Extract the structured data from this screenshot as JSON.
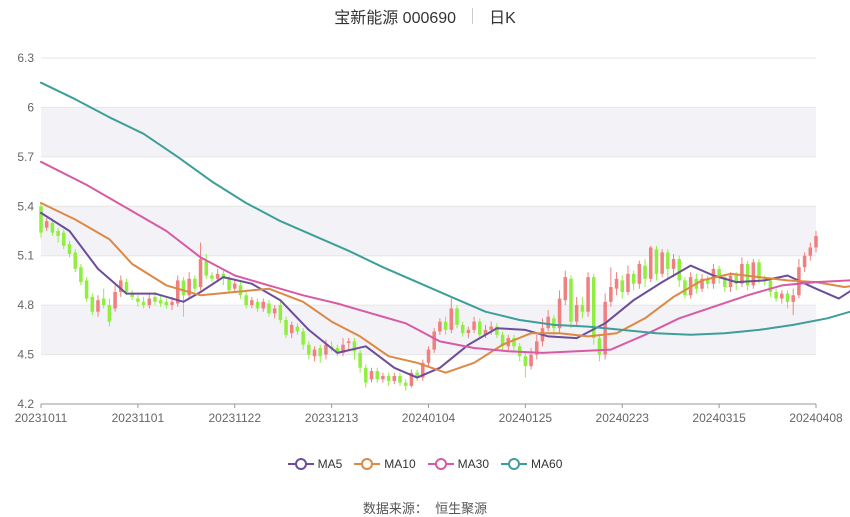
{
  "header": {
    "title": "宝新能源 000690",
    "period": "日K"
  },
  "source": {
    "label": "数据来源：",
    "name": "恒生聚源"
  },
  "chart_data": {
    "type": "candlestick",
    "title": "宝新能源 000690",
    "period": "日K",
    "xlabel": "",
    "ylabel": "",
    "ylim": [
      4.2,
      6.3
    ],
    "yticks": [
      4.2,
      4.5,
      4.8,
      5.1,
      5.4,
      5.7,
      6,
      6.3
    ],
    "xticks": [
      "20231011",
      "20231101",
      "20231122",
      "20231213",
      "20240104",
      "20240125",
      "20240223",
      "20240315",
      "20240408"
    ],
    "grid": true,
    "legend": "bottom",
    "colors": {
      "up": "#f08080",
      "down": "#90ee40",
      "band": "#f3f3f7",
      "grid": "#e6e6e6"
    },
    "candles": [
      [
        5.4,
        5.24,
        5.42,
        5.21
      ],
      [
        5.27,
        5.31,
        5.33,
        5.25
      ],
      [
        5.3,
        5.24,
        5.32,
        5.22
      ],
      [
        5.25,
        5.22,
        5.27,
        5.18
      ],
      [
        5.24,
        5.16,
        5.26,
        5.14
      ],
      [
        5.17,
        5.11,
        5.19,
        5.09
      ],
      [
        5.12,
        5.02,
        5.14,
        5.0
      ],
      [
        5.03,
        4.94,
        5.05,
        4.92
      ],
      [
        4.95,
        4.84,
        4.97,
        4.82
      ],
      [
        4.85,
        4.76,
        4.87,
        4.74
      ],
      [
        4.76,
        4.83,
        4.86,
        4.73
      ],
      [
        4.84,
        4.8,
        4.9,
        4.78
      ],
      [
        4.8,
        4.7,
        4.84,
        4.67
      ],
      [
        4.78,
        4.88,
        4.92,
        4.76
      ],
      [
        4.88,
        4.95,
        4.98,
        4.85
      ],
      [
        4.94,
        4.88,
        4.96,
        4.86
      ],
      [
        4.87,
        4.85,
        4.89,
        4.83
      ],
      [
        4.84,
        4.82,
        4.86,
        4.79
      ],
      [
        4.82,
        4.8,
        4.85,
        4.78
      ],
      [
        4.8,
        4.84,
        4.87,
        4.78
      ],
      [
        4.85,
        4.82,
        4.88,
        4.8
      ],
      [
        4.83,
        4.81,
        4.86,
        4.79
      ],
      [
        4.82,
        4.8,
        4.84,
        4.78
      ],
      [
        4.8,
        4.82,
        4.85,
        4.77
      ],
      [
        4.81,
        4.95,
        4.98,
        4.79
      ],
      [
        4.95,
        4.86,
        4.97,
        4.73
      ],
      [
        4.86,
        4.96,
        5.0,
        4.84
      ],
      [
        4.96,
        4.9,
        4.98,
        4.88
      ],
      [
        4.91,
        5.08,
        5.18,
        4.89
      ],
      [
        5.07,
        4.98,
        5.11,
        4.96
      ],
      [
        4.98,
        4.96,
        5.0,
        4.94
      ],
      [
        4.96,
        4.99,
        5.02,
        4.94
      ],
      [
        4.99,
        4.96,
        5.01,
        4.92
      ],
      [
        4.96,
        4.89,
        4.98,
        4.87
      ],
      [
        4.9,
        4.93,
        4.95,
        4.88
      ],
      [
        4.92,
        4.86,
        4.94,
        4.84
      ],
      [
        4.86,
        4.8,
        4.88,
        4.78
      ],
      [
        4.8,
        4.83,
        4.85,
        4.78
      ],
      [
        4.82,
        4.78,
        4.84,
        4.76
      ],
      [
        4.78,
        4.82,
        4.84,
        4.76
      ],
      [
        4.81,
        4.75,
        4.83,
        4.73
      ],
      [
        4.75,
        4.78,
        4.8,
        4.72
      ],
      [
        4.8,
        4.71,
        4.82,
        4.69
      ],
      [
        4.71,
        4.62,
        4.73,
        4.6
      ],
      [
        4.63,
        4.68,
        4.7,
        4.6
      ],
      [
        4.67,
        4.64,
        4.69,
        4.62
      ],
      [
        4.64,
        4.56,
        4.66,
        4.53
      ],
      [
        4.56,
        4.5,
        4.58,
        4.47
      ],
      [
        4.49,
        4.53,
        4.55,
        4.46
      ],
      [
        4.54,
        4.49,
        4.56,
        4.45
      ],
      [
        4.5,
        4.56,
        4.59,
        4.47
      ],
      [
        4.55,
        4.54,
        4.58,
        4.52
      ],
      [
        4.54,
        4.51,
        4.56,
        4.49
      ],
      [
        4.51,
        4.56,
        4.6,
        4.49
      ],
      [
        4.57,
        4.58,
        4.6,
        4.52
      ],
      [
        4.58,
        4.52,
        4.6,
        4.47
      ],
      [
        4.51,
        4.42,
        4.53,
        4.39
      ],
      [
        4.42,
        4.33,
        4.44,
        4.3
      ],
      [
        4.35,
        4.4,
        4.42,
        4.33
      ],
      [
        4.4,
        4.35,
        4.42,
        4.33
      ],
      [
        4.35,
        4.37,
        4.39,
        4.33
      ],
      [
        4.37,
        4.34,
        4.39,
        4.31
      ],
      [
        4.34,
        4.37,
        4.39,
        4.32
      ],
      [
        4.37,
        4.33,
        4.39,
        4.31
      ],
      [
        4.33,
        4.31,
        4.35,
        4.28
      ],
      [
        4.31,
        4.39,
        4.41,
        4.3
      ],
      [
        4.39,
        4.36,
        4.41,
        4.34
      ],
      [
        4.36,
        4.45,
        4.47,
        4.34
      ],
      [
        4.45,
        4.53,
        4.55,
        4.43
      ],
      [
        4.53,
        4.64,
        4.66,
        4.51
      ],
      [
        4.64,
        4.7,
        4.72,
        4.62
      ],
      [
        4.7,
        4.65,
        4.73,
        4.62
      ],
      [
        4.65,
        4.78,
        4.84,
        4.63
      ],
      [
        4.78,
        4.68,
        4.8,
        4.66
      ],
      [
        4.68,
        4.63,
        4.7,
        4.61
      ],
      [
        4.63,
        4.65,
        4.67,
        4.6
      ],
      [
        4.65,
        4.7,
        4.73,
        4.63
      ],
      [
        4.7,
        4.62,
        4.72,
        4.6
      ],
      [
        4.62,
        4.65,
        4.68,
        4.6
      ],
      [
        4.65,
        4.67,
        4.7,
        4.62
      ],
      [
        4.67,
        4.62,
        4.69,
        4.6
      ],
      [
        4.62,
        4.55,
        4.64,
        4.53
      ],
      [
        4.55,
        4.6,
        4.62,
        4.52
      ],
      [
        4.6,
        4.55,
        4.62,
        4.52
      ],
      [
        4.55,
        4.49,
        4.57,
        4.46
      ],
      [
        4.49,
        4.43,
        4.51,
        4.36
      ],
      [
        4.43,
        4.5,
        4.54,
        4.41
      ],
      [
        4.5,
        4.58,
        4.62,
        4.47
      ],
      [
        4.58,
        4.66,
        4.72,
        4.55
      ],
      [
        4.66,
        4.73,
        4.77,
        4.64
      ],
      [
        4.72,
        4.66,
        4.74,
        4.62
      ],
      [
        4.66,
        4.84,
        4.89,
        4.63
      ],
      [
        4.83,
        4.97,
        5.01,
        4.8
      ],
      [
        4.96,
        4.7,
        4.98,
        4.66
      ],
      [
        4.7,
        4.8,
        4.85,
        4.67
      ],
      [
        4.8,
        4.76,
        4.85,
        4.72
      ],
      [
        4.76,
        4.97,
        5.0,
        4.73
      ],
      [
        4.97,
        4.6,
        4.99,
        4.56
      ],
      [
        4.6,
        4.5,
        4.62,
        4.46
      ],
      [
        4.5,
        4.82,
        4.87,
        4.47
      ],
      [
        4.82,
        4.91,
        5.03,
        4.79
      ],
      [
        4.9,
        4.96,
        5.0,
        4.86
      ],
      [
        4.95,
        4.88,
        4.98,
        4.84
      ],
      [
        4.88,
        4.99,
        5.04,
        4.86
      ],
      [
        4.99,
        4.93,
        5.01,
        4.89
      ],
      [
        4.93,
        5.05,
        5.07,
        4.9
      ],
      [
        5.04,
        4.96,
        5.08,
        4.91
      ],
      [
        4.96,
        5.15,
        5.16,
        4.94
      ],
      [
        5.14,
        4.99,
        5.16,
        4.95
      ],
      [
        4.99,
        5.12,
        5.14,
        4.97
      ],
      [
        5.12,
        5.02,
        5.14,
        4.96
      ],
      [
        5.02,
        5.08,
        5.11,
        4.97
      ],
      [
        5.08,
        4.95,
        5.1,
        4.91
      ],
      [
        4.95,
        4.86,
        4.97,
        4.84
      ],
      [
        4.86,
        4.97,
        5.0,
        4.84
      ],
      [
        4.96,
        4.9,
        4.99,
        4.87
      ],
      [
        4.9,
        4.96,
        4.99,
        4.88
      ],
      [
        4.96,
        4.93,
        4.98,
        4.9
      ],
      [
        4.93,
        5.02,
        5.05,
        4.9
      ],
      [
        5.02,
        4.97,
        5.04,
        4.93
      ],
      [
        4.97,
        4.91,
        4.99,
        4.88
      ],
      [
        4.91,
        4.98,
        5.0,
        4.88
      ],
      [
        4.98,
        4.93,
        5.0,
        4.89
      ],
      [
        4.93,
        5.05,
        5.09,
        4.91
      ],
      [
        5.05,
        4.92,
        5.07,
        4.89
      ],
      [
        4.92,
        5.06,
        5.08,
        4.9
      ],
      [
        5.06,
        4.96,
        5.08,
        4.93
      ],
      [
        4.96,
        4.95,
        4.98,
        4.92
      ],
      [
        4.95,
        4.88,
        4.97,
        4.85
      ],
      [
        4.88,
        4.84,
        4.9,
        4.82
      ],
      [
        4.84,
        4.87,
        4.89,
        4.81
      ],
      [
        4.87,
        4.82,
        4.89,
        4.78
      ],
      [
        4.82,
        4.86,
        4.9,
        4.74
      ],
      [
        4.86,
        5.03,
        5.08,
        4.84
      ],
      [
        5.03,
        5.1,
        5.12,
        5.0
      ],
      [
        5.1,
        5.15,
        5.18,
        5.07
      ],
      [
        5.15,
        5.22,
        5.25,
        5.12
      ]
    ],
    "series": [
      {
        "name": "MA5",
        "color": "#6b4d9c",
        "values": [
          [
            0,
            5.36
          ],
          [
            5,
            5.25
          ],
          [
            10,
            5.02
          ],
          [
            15,
            4.87
          ],
          [
            20,
            4.87
          ],
          [
            25,
            4.82
          ],
          [
            28,
            4.88
          ],
          [
            32,
            4.97
          ],
          [
            37,
            4.93
          ],
          [
            42,
            4.83
          ],
          [
            47,
            4.65
          ],
          [
            52,
            4.51
          ],
          [
            57,
            4.55
          ],
          [
            62,
            4.42
          ],
          [
            66,
            4.36
          ],
          [
            70,
            4.42
          ],
          [
            75,
            4.56
          ],
          [
            80,
            4.66
          ],
          [
            85,
            4.65
          ],
          [
            89,
            4.61
          ],
          [
            94,
            4.6
          ],
          [
            99,
            4.69
          ],
          [
            104,
            4.83
          ],
          [
            109,
            4.94
          ],
          [
            114,
            5.04
          ],
          [
            118,
            4.98
          ],
          [
            122,
            4.94
          ],
          [
            127,
            4.95
          ],
          [
            131,
            4.98
          ],
          [
            136,
            4.9
          ],
          [
            140,
            4.84
          ],
          [
            144,
            4.93
          ],
          [
            148,
            5.1
          ]
        ]
      },
      {
        "name": "MA10",
        "color": "#dd8844",
        "values": [
          [
            0,
            5.42
          ],
          [
            6,
            5.32
          ],
          [
            12,
            5.2
          ],
          [
            16,
            5.05
          ],
          [
            22,
            4.92
          ],
          [
            28,
            4.86
          ],
          [
            34,
            4.88
          ],
          [
            40,
            4.9
          ],
          [
            46,
            4.82
          ],
          [
            51,
            4.7
          ],
          [
            56,
            4.61
          ],
          [
            61,
            4.49
          ],
          [
            66,
            4.45
          ],
          [
            71,
            4.39
          ],
          [
            76,
            4.45
          ],
          [
            81,
            4.56
          ],
          [
            86,
            4.63
          ],
          [
            91,
            4.63
          ],
          [
            96,
            4.61
          ],
          [
            101,
            4.63
          ],
          [
            106,
            4.72
          ],
          [
            111,
            4.85
          ],
          [
            116,
            4.95
          ],
          [
            121,
            4.99
          ],
          [
            126,
            4.97
          ],
          [
            131,
            4.95
          ],
          [
            136,
            4.94
          ],
          [
            141,
            4.91
          ],
          [
            145,
            4.93
          ],
          [
            148,
            4.97
          ]
        ]
      },
      {
        "name": "MA30",
        "color": "#d85aa5",
        "values": [
          [
            0,
            5.67
          ],
          [
            8,
            5.53
          ],
          [
            14,
            5.41
          ],
          [
            22,
            5.25
          ],
          [
            28,
            5.09
          ],
          [
            34,
            4.98
          ],
          [
            40,
            4.92
          ],
          [
            46,
            4.86
          ],
          [
            52,
            4.81
          ],
          [
            58,
            4.75
          ],
          [
            64,
            4.69
          ],
          [
            70,
            4.58
          ],
          [
            76,
            4.54
          ],
          [
            82,
            4.52
          ],
          [
            88,
            4.51
          ],
          [
            94,
            4.52
          ],
          [
            100,
            4.53
          ],
          [
            106,
            4.62
          ],
          [
            112,
            4.72
          ],
          [
            118,
            4.79
          ],
          [
            124,
            4.86
          ],
          [
            130,
            4.92
          ],
          [
            136,
            4.94
          ],
          [
            142,
            4.95
          ],
          [
            148,
            4.97
          ]
        ]
      },
      {
        "name": "MA60",
        "color": "#3d9e9a",
        "values": [
          [
            0,
            6.15
          ],
          [
            6,
            6.05
          ],
          [
            12,
            5.94
          ],
          [
            18,
            5.84
          ],
          [
            24,
            5.7
          ],
          [
            30,
            5.55
          ],
          [
            36,
            5.42
          ],
          [
            42,
            5.31
          ],
          [
            48,
            5.22
          ],
          [
            54,
            5.13
          ],
          [
            60,
            5.03
          ],
          [
            66,
            4.94
          ],
          [
            72,
            4.85
          ],
          [
            78,
            4.76
          ],
          [
            84,
            4.71
          ],
          [
            90,
            4.68
          ],
          [
            96,
            4.67
          ],
          [
            102,
            4.65
          ],
          [
            108,
            4.63
          ],
          [
            114,
            4.62
          ],
          [
            120,
            4.63
          ],
          [
            126,
            4.65
          ],
          [
            132,
            4.68
          ],
          [
            138,
            4.72
          ],
          [
            144,
            4.78
          ],
          [
            148,
            4.84
          ]
        ]
      }
    ]
  }
}
